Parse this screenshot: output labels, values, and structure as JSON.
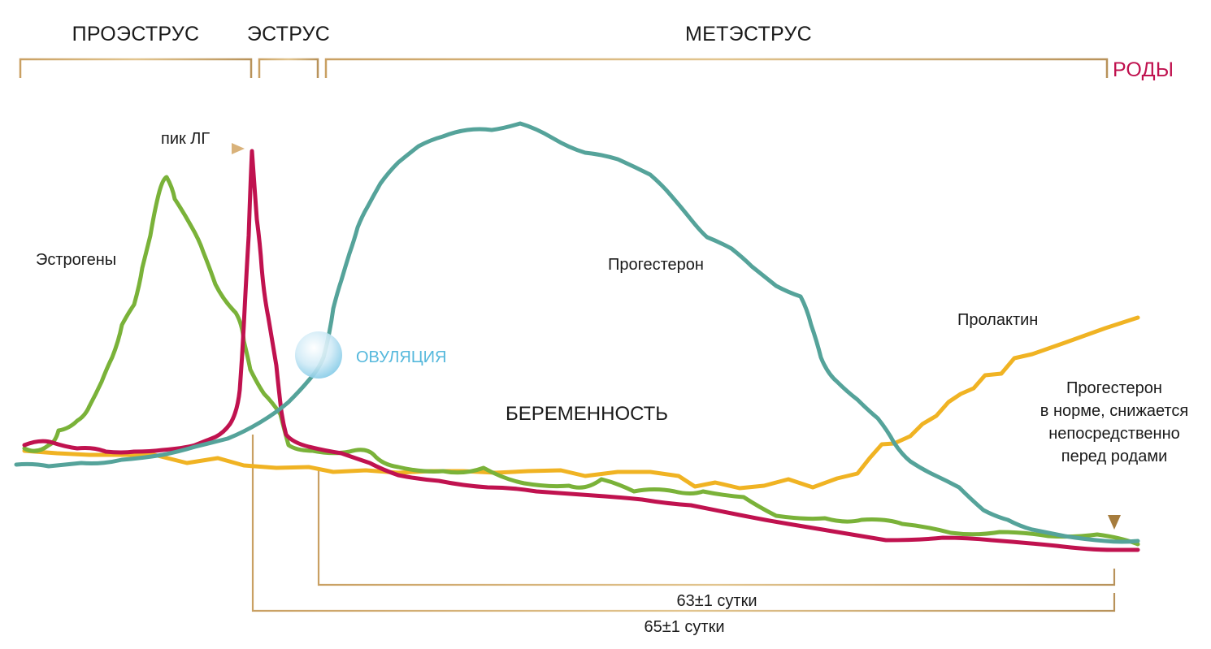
{
  "phases": {
    "proestrus": "ПРОЭСТРУС",
    "estrus": "ЭСТРУС",
    "metestrus": "МЕТЭСТРУС",
    "birth": "РОДЫ"
  },
  "labels": {
    "lh_peak": "пик ЛГ",
    "estrogens": "Эстрогены",
    "progesterone": "Прогестерон",
    "prolactin": "Пролактин",
    "ovulation": "ОВУЛЯЦИЯ",
    "pregnancy": "БЕРЕМЕННОСТЬ",
    "progesterone_note": [
      "Прогестерон",
      "в норме, снижается",
      "непосредственно",
      "перед родами"
    ],
    "duration_63": "63±1 сутки",
    "duration_65": "65±1 сутки"
  },
  "colors": {
    "estrogens": "#7ab239",
    "lh": "#c0124f",
    "progesterone": "#55a39a",
    "prolactin": "#f0b323",
    "bracket_gold": "#c9a063",
    "ovulation": "#55b8dc",
    "birth": "#c0124f"
  }
}
